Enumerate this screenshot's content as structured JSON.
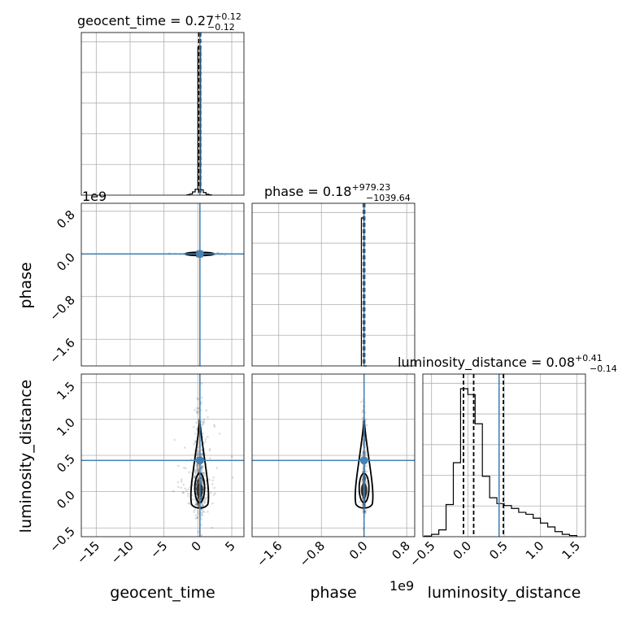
{
  "chart_data": {
    "type": "corner",
    "parameters": [
      "geocent_time",
      "phase",
      "luminosity_distance"
    ],
    "truths": {
      "geocent_time": 0.3,
      "phase": 0.0,
      "luminosity_distance": 0.43
    },
    "titles": [
      {
        "param": "geocent_time",
        "text": "geocent_time = 0.27",
        "plus": "+0.12",
        "minus": "−0.12"
      },
      {
        "param": "phase",
        "text": "phase = 0.18",
        "plus": "+979.23",
        "minus": "−1039.64"
      },
      {
        "param": "luminosity_distance",
        "text": "luminosity_distance = 0.08",
        "plus": "+0.41",
        "minus": "−0.14"
      }
    ],
    "axis_offsets": {
      "phase_y": "1e9",
      "phase_x": "1e9"
    },
    "xlabels": [
      "geocent_time",
      "phase",
      "luminosity_distance"
    ],
    "ylabels": [
      "phase",
      "luminosity_distance"
    ],
    "ranges": {
      "geocent_time": [
        -17.2,
        6.8
      ],
      "phase": [
        -2.1,
        0.95
      ],
      "luminosity_distance": [
        -0.62,
        1.62
      ]
    },
    "ticks": {
      "geocent_time": [
        -15,
        -10,
        -5,
        0,
        5
      ],
      "geocent_time_labels": [
        "−15",
        "−10",
        "−5",
        "0",
        "5"
      ],
      "phase": [
        -1.6,
        -0.8,
        0.0,
        0.8
      ],
      "phase_labels": [
        "−1.6",
        "−0.8",
        "0.0",
        "0.8"
      ],
      "luminosity_distance": [
        -0.5,
        0.0,
        0.5,
        1.0,
        1.5
      ],
      "luminosity_distance_labels": [
        "−0.5",
        "0.0",
        "0.5",
        "1.0",
        "1.5"
      ]
    },
    "histograms": {
      "geocent_time": {
        "bin_edges": [
          -1.6,
          -1.2,
          -0.8,
          -0.4,
          0.0,
          0.4,
          0.8,
          1.2,
          1.6,
          2.0
        ],
        "counts": [
          0.3,
          0.8,
          2.2,
          4.0,
          100,
          3.6,
          1.8,
          0.6,
          0.2
        ],
        "quantiles": [
          0.15,
          0.27,
          0.39
        ]
      },
      "phase": {
        "bin_edges": [
          -0.05,
          0.0,
          0.05
        ],
        "counts": [
          100,
          0
        ],
        "quantiles": [
          -0.01,
          0.0,
          0.01
        ]
      },
      "luminosity_distance": {
        "bin_edges": [
          -0.6,
          -0.5,
          -0.4,
          -0.3,
          -0.2,
          -0.1,
          0.0,
          0.1,
          0.2,
          0.3,
          0.4,
          0.5,
          0.6,
          0.7,
          0.8,
          0.9,
          1.0,
          1.1,
          1.2,
          1.3,
          1.4,
          1.5
        ],
        "counts": [
          0.3,
          1.2,
          3.5,
          16.5,
          38.0,
          76.0,
          73.0,
          58.0,
          31.0,
          20.0,
          17.0,
          16.0,
          14.5,
          12.5,
          11.5,
          9.5,
          7.0,
          5.0,
          2.6,
          1.2,
          0.6
        ],
        "quantiles": [
          -0.06,
          0.08,
          0.49
        ]
      }
    },
    "grid": true
  }
}
